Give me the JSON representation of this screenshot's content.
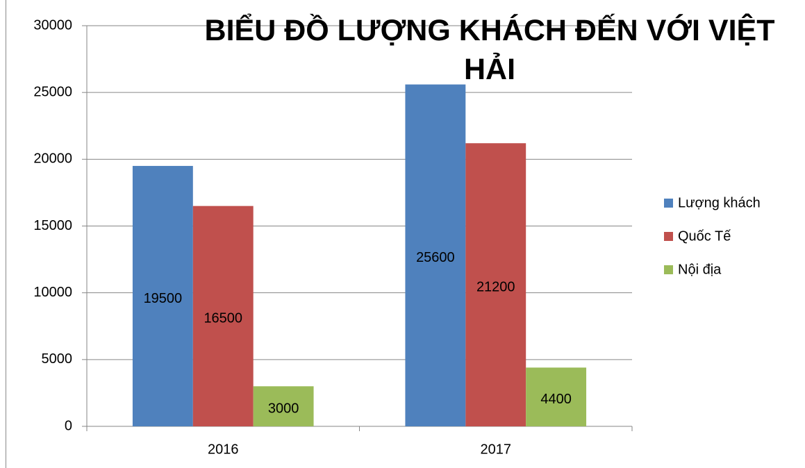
{
  "chart_data": {
    "type": "bar",
    "title": "BIỂU ĐỒ LƯỢNG KHÁCH ĐẾN VỚI VIỆT HẢI",
    "categories": [
      "2016",
      "2017"
    ],
    "series": [
      {
        "name": "Lượng khách",
        "color": "#4f81bd",
        "values": [
          19500,
          25600
        ]
      },
      {
        "name": "Quốc Tế",
        "color": "#c0504d",
        "values": [
          16500,
          21200
        ]
      },
      {
        "name": "Nội địa",
        "color": "#9bbb59",
        "values": [
          3000,
          4400
        ]
      }
    ],
    "ylim": [
      0,
      30000
    ],
    "yticks": [
      0,
      5000,
      10000,
      15000,
      20000,
      25000,
      30000
    ],
    "grid": true,
    "legend": "right"
  }
}
